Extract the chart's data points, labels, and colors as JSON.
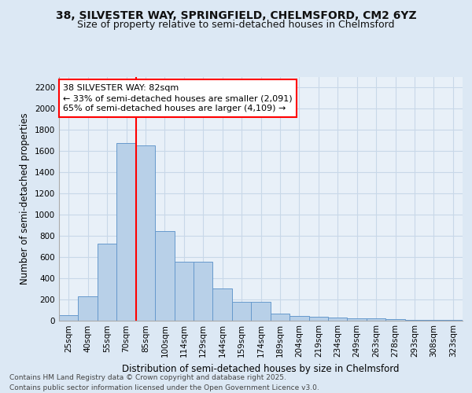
{
  "title": "38, SILVESTER WAY, SPRINGFIELD, CHELMSFORD, CM2 6YZ",
  "subtitle": "Size of property relative to semi-detached houses in Chelmsford",
  "xlabel": "Distribution of semi-detached houses by size in Chelmsford",
  "ylabel": "Number of semi-detached properties",
  "categories": [
    "25sqm",
    "40sqm",
    "55sqm",
    "70sqm",
    "85sqm",
    "100sqm",
    "114sqm",
    "129sqm",
    "144sqm",
    "159sqm",
    "174sqm",
    "189sqm",
    "204sqm",
    "219sqm",
    "234sqm",
    "249sqm",
    "263sqm",
    "278sqm",
    "293sqm",
    "308sqm",
    "323sqm"
  ],
  "values": [
    45,
    225,
    725,
    1675,
    1650,
    845,
    555,
    555,
    300,
    175,
    175,
    60,
    40,
    35,
    25,
    15,
    15,
    10,
    5,
    5,
    2
  ],
  "bar_color": "#b8d0e8",
  "bar_edge_color": "#6699cc",
  "annotation_title": "38 SILVESTER WAY: 82sqm",
  "annotation_line1": "← 33% of semi-detached houses are smaller (2,091)",
  "annotation_line2": "65% of semi-detached houses are larger (4,109) →",
  "ylim": [
    0,
    2300
  ],
  "yticks": [
    0,
    200,
    400,
    600,
    800,
    1000,
    1200,
    1400,
    1600,
    1800,
    2000,
    2200
  ],
  "plot_bg_color": "#e8f0f8",
  "fig_bg_color": "#dce8f4",
  "grid_color": "#c8d8e8",
  "footer_line1": "Contains HM Land Registry data © Crown copyright and database right 2025.",
  "footer_line2": "Contains public sector information licensed under the Open Government Licence v3.0.",
  "title_fontsize": 10,
  "subtitle_fontsize": 9,
  "annotation_fontsize": 8,
  "axis_label_fontsize": 8.5,
  "tick_fontsize": 7.5,
  "footer_fontsize": 6.5,
  "red_line_x": 3.5
}
